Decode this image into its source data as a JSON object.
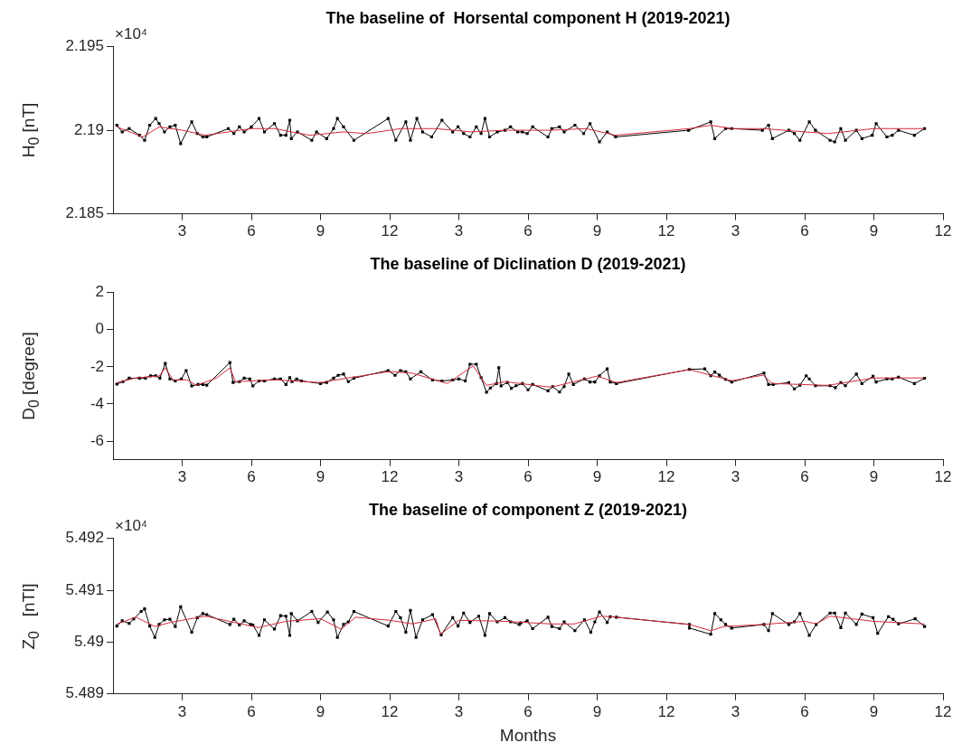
{
  "chart_data": [
    {
      "type": "line",
      "title": "The baseline of  Horsental component H (2019-2021)",
      "ylabel": "H$_{0}$ [nT]",
      "annotations": [
        "×10⁴"
      ],
      "xlim": [
        "2019-01-01",
        "2021-12-31"
      ],
      "xticks": [
        {
          "value": "2019-03-31",
          "label": "3"
        },
        {
          "value": "2019-06-30",
          "label": "6"
        },
        {
          "value": "2019-09-30",
          "label": "9"
        },
        {
          "value": "2019-12-31",
          "label": "12"
        },
        {
          "value": "2020-03-31",
          "label": "3"
        },
        {
          "value": "2020-06-30",
          "label": "6"
        },
        {
          "value": "2020-09-30",
          "label": "9"
        },
        {
          "value": "2020-12-31",
          "label": "12"
        },
        {
          "value": "2021-03-31",
          "label": "3"
        },
        {
          "value": "2021-06-30",
          "label": "6"
        },
        {
          "value": "2021-09-30",
          "label": "9"
        },
        {
          "value": "2021-12-31",
          "label": "12"
        }
      ],
      "ylim": [
        2.185,
        2.195
      ],
      "yticks": [
        2.185,
        2.19,
        2.195
      ],
      "series": [
        {
          "color": "#000000",
          "marker": "square",
          "x": [
            "2019-01-06",
            "2019-01-13",
            "2019-01-22",
            "2019-02-05",
            "2019-02-11",
            "2019-02-17",
            "2019-02-24",
            "2019-03-01",
            "2019-03-08",
            "2019-03-15",
            "2019-03-22",
            "2019-03-29",
            "2019-04-13",
            "2019-04-20",
            "2019-04-27",
            "2019-05-03",
            "2019-06-01",
            "2019-06-08",
            "2019-06-15",
            "2019-06-21",
            "2019-06-30",
            "2019-07-11",
            "2019-07-18",
            "2019-08-01",
            "2019-08-09",
            "2019-08-16",
            "2019-08-21",
            "2019-08-23",
            "2019-09-01",
            "2019-09-19",
            "2019-09-25",
            "2019-10-09",
            "2019-10-18",
            "2019-10-23",
            "2019-10-31",
            "2019-11-14",
            "2019-12-29",
            "2020-01-09",
            "2020-01-22",
            "2020-01-28",
            "2020-02-06",
            "2020-02-13",
            "2020-02-24",
            "2020-03-09",
            "2020-03-23",
            "2020-03-30",
            "2020-04-07",
            "2020-04-15",
            "2020-04-23",
            "2020-04-29",
            "2020-05-05",
            "2020-05-11",
            "2020-05-21",
            "2020-06-01",
            "2020-06-08",
            "2020-06-17",
            "2020-06-23",
            "2020-06-29",
            "2020-07-07",
            "2020-07-27",
            "2020-08-02",
            "2020-08-12",
            "2020-08-18",
            "2020-09-02",
            "2020-09-13",
            "2020-09-21",
            "2020-10-04",
            "2020-10-14",
            "2020-10-25",
            "2021-01-30",
            "2021-02-26",
            "2021-03-04",
            "2021-03-18",
            "2021-03-26",
            "2021-05-06",
            "2021-05-14",
            "2021-05-19",
            "2021-06-10",
            "2021-06-17",
            "2021-06-24",
            "2021-07-07",
            "2021-07-15",
            "2021-08-04",
            "2021-08-10",
            "2021-08-18",
            "2021-08-24",
            "2021-09-08",
            "2021-09-15",
            "2021-09-28",
            "2021-10-04",
            "2021-10-18",
            "2021-10-25",
            "2021-11-03",
            "2021-11-23",
            "2021-12-07"
          ],
          "values": [
            2.1903,
            2.1899,
            2.1901,
            2.1897,
            2.1894,
            2.1903,
            2.1907,
            2.1904,
            2.1899,
            2.1902,
            2.1903,
            2.1892,
            2.1905,
            2.1898,
            2.1896,
            2.1896,
            2.1901,
            2.1898,
            2.1902,
            2.1899,
            2.1902,
            2.1907,
            2.1899,
            2.1904,
            2.1897,
            2.1897,
            2.1906,
            2.1895,
            2.1899,
            2.1894,
            2.1899,
            2.1895,
            2.1901,
            2.1907,
            2.1902,
            2.1894,
            2.1907,
            2.1894,
            2.1905,
            2.1894,
            2.1907,
            2.1899,
            2.1896,
            2.1906,
            2.1899,
            2.1902,
            2.1898,
            2.1896,
            2.1902,
            2.1898,
            2.1907,
            2.1896,
            2.1899,
            2.19,
            2.1902,
            2.1899,
            2.1899,
            2.1898,
            2.1902,
            2.1896,
            2.1901,
            2.1902,
            2.1899,
            2.1903,
            2.1898,
            2.1904,
            2.1893,
            2.1899,
            2.1896,
            2.19,
            2.1905,
            2.1895,
            2.1901,
            2.1901,
            2.19,
            2.1903,
            2.1895,
            2.19,
            2.1898,
            2.1894,
            2.1905,
            2.19,
            2.1894,
            2.1893,
            2.1901,
            2.1894,
            2.19,
            2.1895,
            2.1897,
            2.1904,
            2.1896,
            2.1897,
            2.19,
            2.1897,
            2.1901
          ]
        },
        {
          "color": "#d42a3c",
          "x": [
            "2019-01-06",
            "2019-02-09",
            "2019-03-01",
            "2019-04-01",
            "2019-05-01",
            "2019-07-01",
            "2019-08-01",
            "2019-09-16",
            "2019-11-01",
            "2019-12-01",
            "2020-01-16",
            "2020-03-01",
            "2020-04-16",
            "2020-06-01",
            "2020-08-01",
            "2020-09-16",
            "2020-10-25",
            "2021-02-01",
            "2021-02-26",
            "2021-03-26",
            "2021-05-07",
            "2021-07-01",
            "2021-08-01",
            "2021-10-01",
            "2021-12-07"
          ],
          "values": [
            2.1902,
            2.1896,
            2.1902,
            2.19,
            2.1897,
            2.1901,
            2.1901,
            2.1897,
            2.1899,
            2.1898,
            2.1901,
            2.1901,
            2.1899,
            2.19,
            2.19,
            2.1901,
            2.1897,
            2.1901,
            2.1903,
            2.1901,
            2.1901,
            2.1899,
            2.1898,
            2.1901,
            2.1901
          ]
        }
      ]
    },
    {
      "type": "line",
      "title": "The baseline of Diclination D (2019-2021)",
      "ylabel": "D$_{0}$ [degree]",
      "xlim": [
        "2019-01-01",
        "2021-12-31"
      ],
      "xticks": [
        {
          "value": "2019-03-31",
          "label": "3"
        },
        {
          "value": "2019-06-30",
          "label": "6"
        },
        {
          "value": "2019-09-30",
          "label": "9"
        },
        {
          "value": "2019-12-31",
          "label": "12"
        },
        {
          "value": "2020-03-31",
          "label": "3"
        },
        {
          "value": "2020-06-30",
          "label": "6"
        },
        {
          "value": "2020-09-30",
          "label": "9"
        },
        {
          "value": "2020-12-31",
          "label": "12"
        },
        {
          "value": "2021-03-31",
          "label": "3"
        },
        {
          "value": "2021-06-30",
          "label": "6"
        },
        {
          "value": "2021-09-30",
          "label": "9"
        },
        {
          "value": "2021-12-31",
          "label": "12"
        }
      ],
      "ylim": [
        -7,
        2
      ],
      "yticks": [
        -6,
        -4,
        -2,
        0,
        2
      ],
      "series": [
        {
          "color": "#000000",
          "marker": "square",
          "x": [
            "2019-01-06",
            "2019-01-14",
            "2019-01-22",
            "2019-02-05",
            "2019-02-12",
            "2019-02-18",
            "2019-02-24",
            "2019-03-02",
            "2019-03-09",
            "2019-03-15",
            "2019-03-22",
            "2019-03-30",
            "2019-04-06",
            "2019-04-13",
            "2019-04-21",
            "2019-04-27",
            "2019-05-03",
            "2019-06-03",
            "2019-06-07",
            "2019-06-15",
            "2019-06-21",
            "2019-06-28",
            "2019-07-03",
            "2019-07-11",
            "2019-07-18",
            "2019-08-01",
            "2019-08-09",
            "2019-08-16",
            "2019-08-21",
            "2019-08-24",
            "2019-08-30",
            "2019-09-06",
            "2019-09-30",
            "2019-10-09",
            "2019-10-18",
            "2019-10-24",
            "2019-10-31",
            "2019-11-07",
            "2019-11-14",
            "2019-12-29",
            "2020-01-08",
            "2020-01-15",
            "2020-01-22",
            "2020-01-28",
            "2020-02-11",
            "2020-02-25",
            "2020-03-09",
            "2020-03-23",
            "2020-04-01",
            "2020-04-09",
            "2020-04-15",
            "2020-04-23",
            "2020-04-29",
            "2020-05-07",
            "2020-05-12",
            "2020-05-20",
            "2020-05-23",
            "2020-05-26",
            "2020-06-04",
            "2020-06-09",
            "2020-06-15",
            "2020-06-23",
            "2020-06-30",
            "2020-07-07",
            "2020-07-27",
            "2020-08-03",
            "2020-08-12",
            "2020-08-18",
            "2020-08-24",
            "2020-08-30",
            "2020-09-14",
            "2020-09-21",
            "2020-09-27",
            "2020-10-04",
            "2020-10-14",
            "2020-10-18",
            "2020-10-26",
            "2021-02-01",
            "2021-02-19",
            "2021-02-26",
            "2021-03-04",
            "2021-03-10",
            "2021-03-18",
            "2021-03-26",
            "2021-05-08",
            "2021-05-14",
            "2021-05-20",
            "2021-06-10",
            "2021-06-17",
            "2021-06-24",
            "2021-07-03",
            "2021-07-07",
            "2021-07-15",
            "2021-08-04",
            "2021-08-11",
            "2021-08-18",
            "2021-08-24",
            "2021-09-08",
            "2021-09-15",
            "2021-09-29",
            "2021-10-04",
            "2021-10-18",
            "2021-10-25",
            "2021-11-03",
            "2021-11-23",
            "2021-12-07"
          ],
          "values": [
            -2.93,
            -2.8,
            -2.61,
            -2.61,
            -2.61,
            -2.48,
            -2.48,
            -2.61,
            -1.82,
            -2.65,
            -2.76,
            -2.65,
            -2.2,
            -3.03,
            -2.95,
            -2.95,
            -2.99,
            -1.77,
            -2.84,
            -2.8,
            -2.61,
            -2.65,
            -3.03,
            -2.76,
            -2.76,
            -2.65,
            -2.65,
            -2.95,
            -2.58,
            -2.8,
            -2.65,
            -2.76,
            -2.9,
            -2.84,
            -2.61,
            -2.46,
            -2.39,
            -2.8,
            -2.61,
            -2.2,
            -2.46,
            -2.2,
            -2.27,
            -2.65,
            -2.27,
            -2.71,
            -2.76,
            -2.71,
            -2.65,
            -2.76,
            -1.86,
            -1.86,
            -2.58,
            -3.37,
            -3.14,
            -2.9,
            -2.05,
            -3.03,
            -2.84,
            -3.16,
            -3.02,
            -2.9,
            -3.24,
            -2.95,
            -3.29,
            -3.07,
            -3.36,
            -3.07,
            -2.39,
            -2.95,
            -2.65,
            -2.82,
            -2.82,
            -2.48,
            -2.11,
            -2.82,
            -2.9,
            -2.14,
            -2.11,
            -2.48,
            -2.28,
            -2.45,
            -2.68,
            -2.82,
            -2.34,
            -2.95,
            -2.95,
            -2.85,
            -3.19,
            -2.99,
            -2.48,
            -2.65,
            -3.02,
            -3.02,
            -3.12,
            -2.85,
            -3.02,
            -2.39,
            -2.9,
            -2.51,
            -2.82,
            -2.65,
            -2.65,
            -2.56,
            -2.9,
            -2.62
          ]
        },
        {
          "color": "#d42a3c",
          "x": [
            "2019-01-06",
            "2019-02-01",
            "2019-03-01",
            "2019-03-09",
            "2019-03-19",
            "2019-04-07",
            "2019-04-19",
            "2019-05-16",
            "2019-06-03",
            "2019-06-10",
            "2019-08-01",
            "2019-10-01",
            "2019-11-07",
            "2020-01-01",
            "2020-02-01",
            "2020-03-16",
            "2020-04-19",
            "2020-05-07",
            "2020-06-01",
            "2020-08-01",
            "2020-10-01",
            "2020-10-26",
            "2021-02-01",
            "2021-03-26",
            "2021-05-07",
            "2021-05-19",
            "2021-08-01",
            "2021-10-01",
            "2021-12-07"
          ],
          "values": [
            -2.85,
            -2.6,
            -2.5,
            -2.05,
            -2.7,
            -2.7,
            -3.0,
            -2.6,
            -2.05,
            -2.8,
            -2.7,
            -2.85,
            -2.6,
            -2.25,
            -2.35,
            -2.9,
            -1.95,
            -3.0,
            -2.8,
            -3.1,
            -2.5,
            -2.85,
            -2.15,
            -2.75,
            -2.45,
            -2.9,
            -3.0,
            -2.6,
            -2.6
          ]
        }
      ]
    },
    {
      "type": "line",
      "title": "The baseline of component Z (2019-2021)",
      "ylabel": "Z$_{0}$   [nTl]",
      "xlabel": "Months",
      "annotations": [
        "×10⁴"
      ],
      "xlim": [
        "2019-01-01",
        "2021-12-31"
      ],
      "xticks": [
        {
          "value": "2019-03-31",
          "label": "3"
        },
        {
          "value": "2019-06-30",
          "label": "6"
        },
        {
          "value": "2019-09-30",
          "label": "9"
        },
        {
          "value": "2019-12-31",
          "label": "12"
        },
        {
          "value": "2020-03-31",
          "label": "3"
        },
        {
          "value": "2020-06-30",
          "label": "6"
        },
        {
          "value": "2020-09-30",
          "label": "9"
        },
        {
          "value": "2020-12-31",
          "label": "12"
        },
        {
          "value": "2021-03-31",
          "label": "3"
        },
        {
          "value": "2021-06-30",
          "label": "6"
        },
        {
          "value": "2021-09-30",
          "label": "9"
        },
        {
          "value": "2021-12-31",
          "label": "12"
        }
      ],
      "ylim": [
        5.489,
        5.492
      ],
      "yticks": [
        5.489,
        5.49,
        5.491,
        5.492
      ],
      "series": [
        {
          "color": "#000000",
          "marker": "square",
          "x": [
            "2019-01-06",
            "2019-01-13",
            "2019-01-22",
            "2019-01-28",
            "2019-02-07",
            "2019-02-11",
            "2019-02-17",
            "2019-02-23",
            "2019-03-01",
            "2019-03-08",
            "2019-03-15",
            "2019-03-22",
            "2019-03-29",
            "2019-04-13",
            "2019-04-20",
            "2019-04-27",
            "2019-05-03",
            "2019-06-03",
            "2019-06-08",
            "2019-06-15",
            "2019-06-21",
            "2019-06-29",
            "2019-07-03",
            "2019-07-11",
            "2019-07-18",
            "2019-08-01",
            "2019-08-09",
            "2019-08-16",
            "2019-08-21",
            "2019-08-23",
            "2019-09-01",
            "2019-09-19",
            "2019-09-27",
            "2019-10-10",
            "2019-10-18",
            "2019-10-23",
            "2019-10-31",
            "2019-11-07",
            "2019-11-14",
            "2019-12-29",
            "2020-01-09",
            "2020-01-15",
            "2020-01-22",
            "2020-01-28",
            "2020-02-05",
            "2020-02-13",
            "2020-02-25",
            "2020-03-08",
            "2020-03-23",
            "2020-03-30",
            "2020-04-07",
            "2020-04-15",
            "2020-04-26",
            "2020-05-05",
            "2020-05-11",
            "2020-05-21",
            "2020-06-01",
            "2020-06-08",
            "2020-06-19",
            "2020-06-21",
            "2020-06-29",
            "2020-07-07",
            "2020-07-27",
            "2020-08-02",
            "2020-08-12",
            "2020-08-18",
            "2020-09-02",
            "2020-09-14",
            "2020-09-22",
            "2020-09-27",
            "2020-10-04",
            "2020-10-14",
            "2020-10-18",
            "2020-10-26",
            "2021-01-31",
            "2021-02-01",
            "2021-02-26",
            "2021-03-04",
            "2021-03-12",
            "2021-03-18",
            "2021-03-26",
            "2021-05-08",
            "2021-05-14",
            "2021-05-19",
            "2021-06-10",
            "2021-06-17",
            "2021-06-24",
            "2021-07-07",
            "2021-07-16",
            "2021-08-04",
            "2021-08-10",
            "2021-08-18",
            "2021-08-24",
            "2021-09-08",
            "2021-09-15",
            "2021-09-29",
            "2021-10-06",
            "2021-10-20",
            "2021-10-26",
            "2021-11-03",
            "2021-11-24",
            "2021-12-07"
          ],
          "values": [
            5.49031,
            5.49041,
            5.49036,
            5.49045,
            5.49059,
            5.49064,
            5.49031,
            5.49009,
            5.49034,
            5.49043,
            5.49044,
            5.4903,
            5.49068,
            5.49019,
            5.49047,
            5.49055,
            5.49053,
            5.49034,
            5.49044,
            5.49033,
            5.49041,
            5.49034,
            5.49033,
            5.49013,
            5.49043,
            5.49025,
            5.49051,
            5.4905,
            5.49013,
            5.49055,
            5.49041,
            5.49059,
            5.49038,
            5.49058,
            5.49043,
            5.49009,
            5.49034,
            5.49039,
            5.49059,
            5.49031,
            5.49059,
            5.49047,
            5.49019,
            5.49061,
            5.49009,
            5.49043,
            5.49053,
            5.49014,
            5.49047,
            5.49031,
            5.49056,
            5.49038,
            5.4905,
            5.49013,
            5.49055,
            5.49039,
            5.49047,
            5.49039,
            5.49034,
            5.49037,
            5.49041,
            5.49026,
            5.49048,
            5.4903,
            5.49026,
            5.49039,
            5.49022,
            5.49043,
            5.49019,
            5.49039,
            5.49058,
            5.49038,
            5.49049,
            5.49048,
            5.49034,
            5.49027,
            5.49015,
            5.49055,
            5.49043,
            5.49034,
            5.49027,
            5.49034,
            5.49022,
            5.49055,
            5.49034,
            5.49039,
            5.49055,
            5.49013,
            5.49034,
            5.49056,
            5.49056,
            5.49028,
            5.49056,
            5.49034,
            5.49054,
            5.49047,
            5.49017,
            5.49049,
            5.49044,
            5.49035,
            5.49045,
            5.4903
          ]
        },
        {
          "color": "#d42a3c",
          "x": [
            "2019-01-06",
            "2019-02-01",
            "2019-02-23",
            "2019-03-16",
            "2019-05-01",
            "2019-07-10",
            "2019-08-16",
            "2019-10-01",
            "2019-10-28",
            "2019-11-16",
            "2020-01-01",
            "2020-02-01",
            "2020-03-01",
            "2020-03-07",
            "2020-04-01",
            "2020-06-01",
            "2020-08-01",
            "2020-09-01",
            "2020-10-07",
            "2020-10-26",
            "2021-02-01",
            "2021-02-26",
            "2021-03-16",
            "2021-05-07",
            "2021-07-01",
            "2021-07-16",
            "2021-08-04",
            "2021-10-01",
            "2021-12-07"
          ],
          "values": [
            5.49035,
            5.49048,
            5.4903,
            5.49038,
            5.4905,
            5.49028,
            5.4904,
            5.49045,
            5.49025,
            5.49048,
            5.49042,
            5.49035,
            5.49045,
            5.49015,
            5.49042,
            5.4904,
            5.49035,
            5.49035,
            5.4905,
            5.49048,
            5.49034,
            5.49022,
            5.4903,
            5.49034,
            5.4904,
            5.49035,
            5.4905,
            5.4904,
            5.49035
          ]
        }
      ]
    }
  ]
}
